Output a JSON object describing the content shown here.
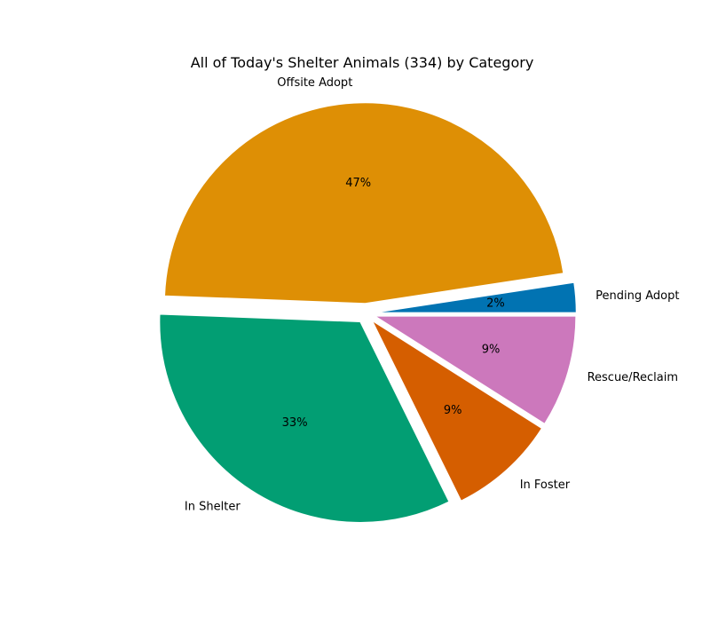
{
  "chart_data": {
    "type": "pie",
    "title": "All of Today's Shelter Animals (334) by Category",
    "categories": [
      "Pending Adopt",
      "Offsite Adopt",
      "In Shelter",
      "In Foster",
      "Rescue/Reclaim"
    ],
    "values": [
      2.4,
      47.0,
      32.9,
      8.7,
      9.0
    ],
    "percent_labels": [
      "2%",
      "47%",
      "33%",
      "9%",
      "9%"
    ],
    "colors": [
      "#0173b2",
      "#de8f05",
      "#029e73",
      "#d55e00",
      "#cc78bc"
    ],
    "explode": true,
    "start_angle_deg": 0,
    "direction": "counterclockwise"
  }
}
